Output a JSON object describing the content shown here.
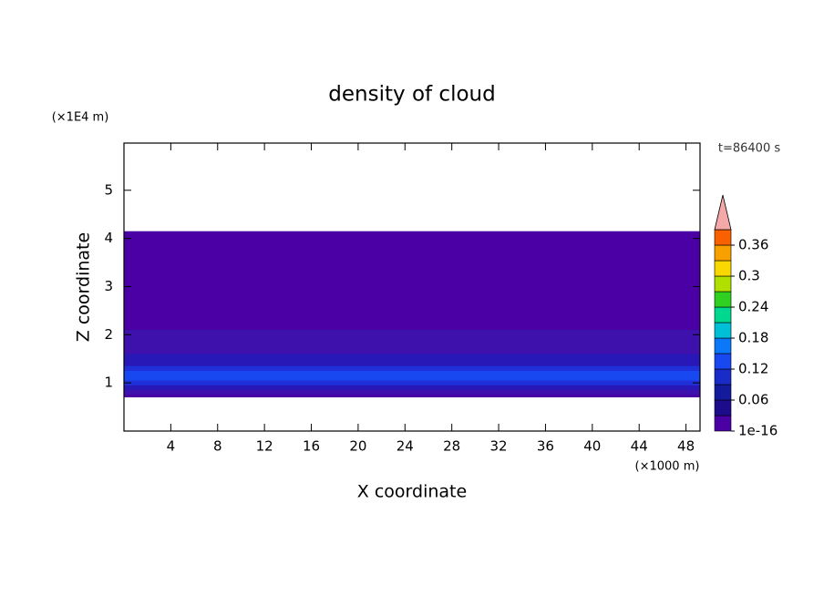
{
  "chart_data": {
    "type": "contour",
    "title": "density of cloud",
    "x_label": "X coordinate",
    "y_label": "Z coordinate",
    "x_unit": "(×1000 m)",
    "y_unit": "(×1E4 m)",
    "annotation": "t=86400 s",
    "xlim": [
      0,
      49.2
    ],
    "xticks": [
      4,
      8,
      12,
      16,
      20,
      24,
      28,
      32,
      36,
      40,
      44,
      48
    ],
    "ylim": [
      0,
      5.98
    ],
    "yticks": [
      1,
      2,
      3,
      4,
      5
    ],
    "grid": false,
    "layers": [
      {
        "values": [
          0.7,
          4.15
        ],
        "color": "#4a00a4"
      },
      {
        "values": [
          0.75,
          2.1
        ],
        "color": "#3e10ac"
      },
      {
        "values": [
          0.85,
          1.6
        ],
        "color": "#2818b8"
      },
      {
        "values": [
          0.95,
          1.35
        ],
        "color": "#2030d8"
      },
      {
        "values": [
          1.05,
          1.25
        ],
        "color": "#1848f0"
      }
    ],
    "colorbar": {
      "lim": [
        0,
        0.39
      ],
      "ticks": [
        1e-16,
        0.06,
        0.12,
        0.18,
        0.24,
        0.3,
        0.36
      ],
      "levels": [
        0,
        0.03,
        0.06,
        0.09,
        0.12,
        0.15,
        0.18,
        0.21,
        0.24,
        0.27,
        0.3,
        0.33,
        0.36
      ],
      "colors": [
        "#4a00a4",
        "#1c0c8c",
        "#141a9c",
        "#1a2cc8",
        "#1a48f0",
        "#0a78f8",
        "#00c0d8",
        "#00d890",
        "#30d020",
        "#b0e000",
        "#f8d800",
        "#f8a000",
        "#f86000"
      ],
      "extend_color": "#f4a8a8"
    }
  }
}
